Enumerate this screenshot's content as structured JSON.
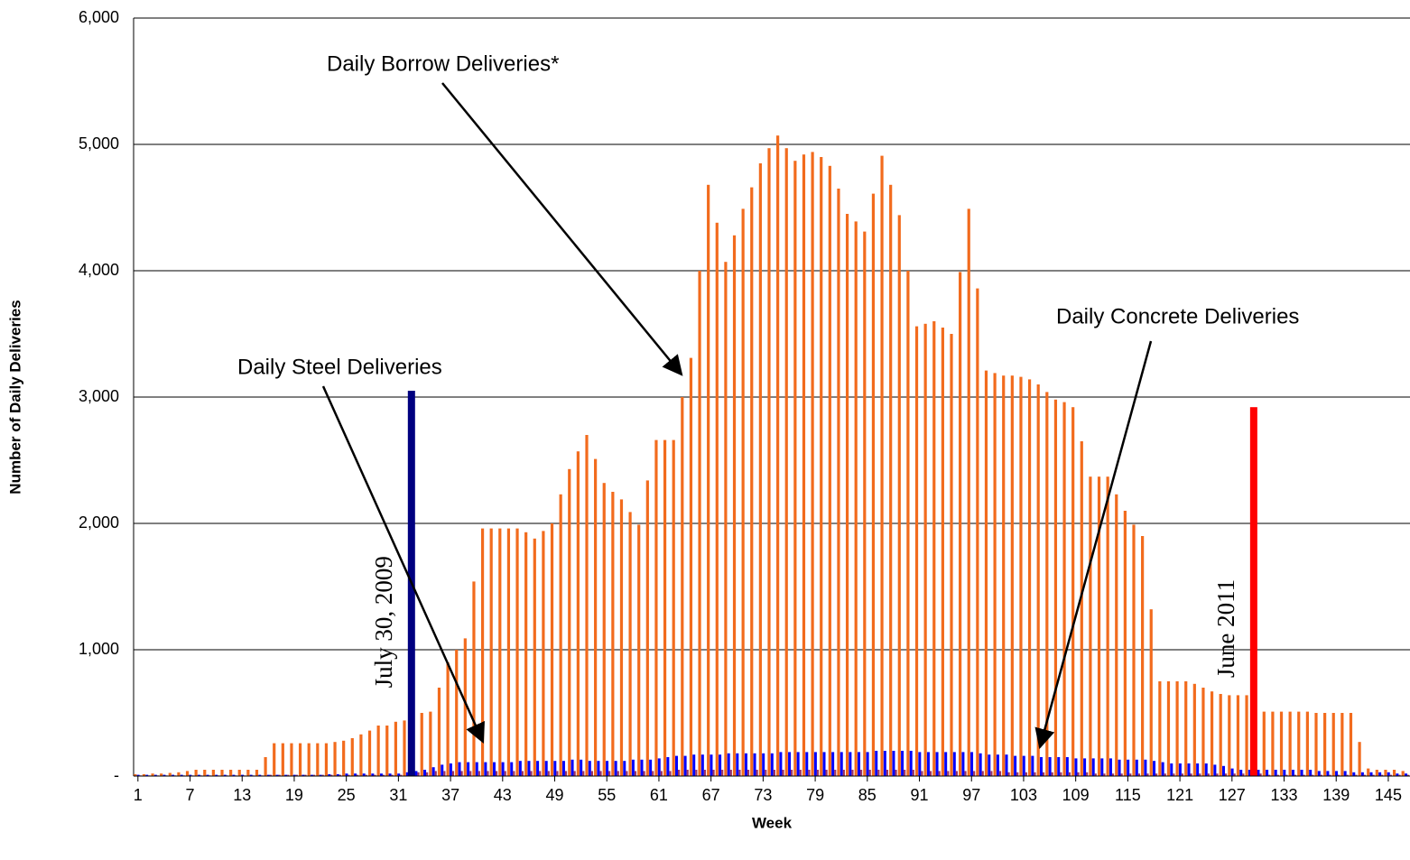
{
  "chart_data": {
    "type": "bar",
    "x_label": "Week",
    "y_label": "Number of Daily Deliveries",
    "categories": [
      1,
      null,
      null,
      null,
      null,
      null,
      7,
      null,
      null,
      null,
      null,
      null,
      13,
      null,
      null,
      null,
      null,
      null,
      19,
      null,
      null,
      null,
      null,
      null,
      25,
      null,
      null,
      null,
      null,
      null,
      31,
      null,
      null,
      null,
      null,
      null,
      37,
      null,
      null,
      null,
      null,
      null,
      43,
      null,
      null,
      null,
      null,
      null,
      49,
      null,
      null,
      null,
      null,
      null,
      55,
      null,
      null,
      null,
      null,
      null,
      61,
      null,
      null,
      null,
      null,
      null,
      67,
      null,
      null,
      null,
      null,
      null,
      73,
      null,
      null,
      null,
      null,
      null,
      79,
      null,
      null,
      null,
      null,
      null,
      85,
      null,
      null,
      null,
      null,
      null,
      91,
      null,
      null,
      null,
      null,
      null,
      97,
      null,
      null,
      null,
      null,
      null,
      103,
      null,
      null,
      null,
      null,
      null,
      109,
      null,
      null,
      null,
      null,
      null,
      115,
      null,
      null,
      null,
      null,
      null,
      121,
      null,
      null,
      null,
      null,
      null,
      127,
      null,
      null,
      null,
      null,
      null,
      133,
      null,
      null,
      null,
      null,
      null,
      139,
      null,
      null,
      null,
      null,
      null,
      145,
      null,
      null
    ],
    "series": [
      {
        "color": "#f26b1d",
        "values": [
          15,
          15,
          20,
          20,
          25,
          30,
          40,
          50,
          50,
          50,
          50,
          50,
          50,
          50,
          50,
          150,
          260,
          260,
          260,
          260,
          260,
          260,
          260,
          270,
          280,
          300,
          330,
          360,
          400,
          400,
          430,
          440,
          470,
          500,
          510,
          700,
          900,
          1000,
          1090,
          1540,
          1960,
          1960,
          1960,
          1960,
          1960,
          1930,
          1880,
          1940,
          2000,
          2230,
          2430,
          2570,
          2700,
          2510,
          2320,
          2250,
          2190,
          2090,
          1990,
          2340,
          2660,
          2660,
          2660,
          3000,
          3310,
          4000,
          4680,
          4380,
          4070,
          4280,
          4490,
          4660,
          4850,
          4970,
          5070,
          4970,
          4870,
          4920,
          4940,
          4900,
          4830,
          4650,
          4450,
          4390,
          4310,
          4610,
          4910,
          4680,
          4440,
          4000,
          3560,
          3580,
          3600,
          3550,
          3500,
          3990,
          4490,
          3860,
          3210,
          3190,
          3170,
          3170,
          3160,
          3140,
          3100,
          3040,
          2980,
          2960,
          2920,
          2650,
          2370,
          2370,
          2370,
          2230,
          2100,
          1990,
          1900,
          1320,
          750,
          750,
          750,
          750,
          730,
          700,
          670,
          650,
          640,
          640,
          640,
          510,
          510,
          510,
          510,
          510,
          510,
          510,
          500,
          500,
          500,
          500,
          500,
          270,
          60,
          50,
          50,
          50,
          40
        ]
      },
      {
        "color": "#0000ff",
        "values": [
          10,
          10,
          10,
          10,
          10,
          10,
          10,
          10,
          10,
          10,
          10,
          10,
          10,
          10,
          10,
          10,
          10,
          10,
          10,
          10,
          10,
          10,
          15,
          15,
          20,
          20,
          20,
          20,
          20,
          20,
          20,
          30,
          40,
          50,
          70,
          90,
          100,
          110,
          110,
          110,
          110,
          110,
          110,
          110,
          120,
          120,
          120,
          120,
          120,
          120,
          130,
          130,
          120,
          120,
          120,
          120,
          120,
          130,
          130,
          130,
          140,
          150,
          160,
          160,
          170,
          170,
          170,
          170,
          180,
          180,
          180,
          180,
          180,
          180,
          190,
          190,
          190,
          190,
          190,
          190,
          190,
          190,
          190,
          190,
          190,
          200,
          200,
          200,
          200,
          200,
          190,
          190,
          190,
          190,
          190,
          190,
          190,
          180,
          170,
          170,
          170,
          160,
          160,
          160,
          150,
          150,
          150,
          150,
          140,
          140,
          140,
          140,
          140,
          130,
          130,
          130,
          130,
          120,
          110,
          100,
          100,
          100,
          100,
          100,
          90,
          80,
          60,
          50,
          50,
          50,
          50,
          50,
          50,
          50,
          50,
          50,
          40,
          40,
          40,
          40,
          30,
          30,
          30,
          30,
          30,
          20,
          20
        ]
      },
      {
        "color": "#993366",
        "values": [
          5,
          5,
          5,
          5,
          5,
          5,
          5,
          5,
          5,
          5,
          5,
          5,
          5,
          5,
          5,
          10,
          10,
          10,
          10,
          10,
          10,
          10,
          10,
          10,
          10,
          10,
          10,
          10,
          10,
          10,
          10,
          20,
          30,
          30,
          40,
          40,
          40,
          40,
          40,
          40,
          40,
          40,
          40,
          40,
          40,
          40,
          40,
          40,
          40,
          40,
          40,
          40,
          40,
          40,
          40,
          40,
          40,
          40,
          40,
          40,
          40,
          40,
          50,
          50,
          50,
          50,
          50,
          50,
          50,
          50,
          50,
          50,
          50,
          50,
          50,
          50,
          50,
          50,
          50,
          50,
          50,
          50,
          50,
          50,
          50,
          50,
          50,
          50,
          50,
          50,
          40,
          40,
          40,
          40,
          40,
          40,
          40,
          40,
          40,
          40,
          30,
          30,
          30,
          30,
          30,
          30,
          30,
          30,
          30,
          30,
          20,
          20,
          20,
          20,
          20,
          20,
          20,
          20,
          20,
          20,
          20,
          20,
          20,
          20,
          20,
          20,
          20,
          20,
          20,
          20,
          10,
          10,
          10,
          10,
          10,
          10,
          10,
          10,
          10,
          10,
          10,
          10,
          10,
          10,
          10,
          10,
          10
        ]
      }
    ],
    "markers": [
      {
        "label": "July 30, 2009",
        "x": 32.5,
        "value": 3050,
        "color": "#000080"
      },
      {
        "label": "June 2011",
        "x": 129.5,
        "value": 2920,
        "color": "#ff0000"
      }
    ],
    "annotations": [
      "Daily Borrow Deliveries*",
      "Daily Steel Deliveries",
      "Daily Concrete Deliveries"
    ],
    "ylim": [
      0,
      6000
    ],
    "yticks": [
      {
        "value": 0,
        "label": "-"
      },
      {
        "value": 1000,
        "label": "1,000"
      },
      {
        "value": 2000,
        "label": "2,000"
      },
      {
        "value": 3000,
        "label": "3,000"
      },
      {
        "value": 4000,
        "label": "4,000"
      },
      {
        "value": 5000,
        "label": "5,000"
      },
      {
        "value": 6000,
        "label": "6,000"
      }
    ],
    "grid": true
  }
}
